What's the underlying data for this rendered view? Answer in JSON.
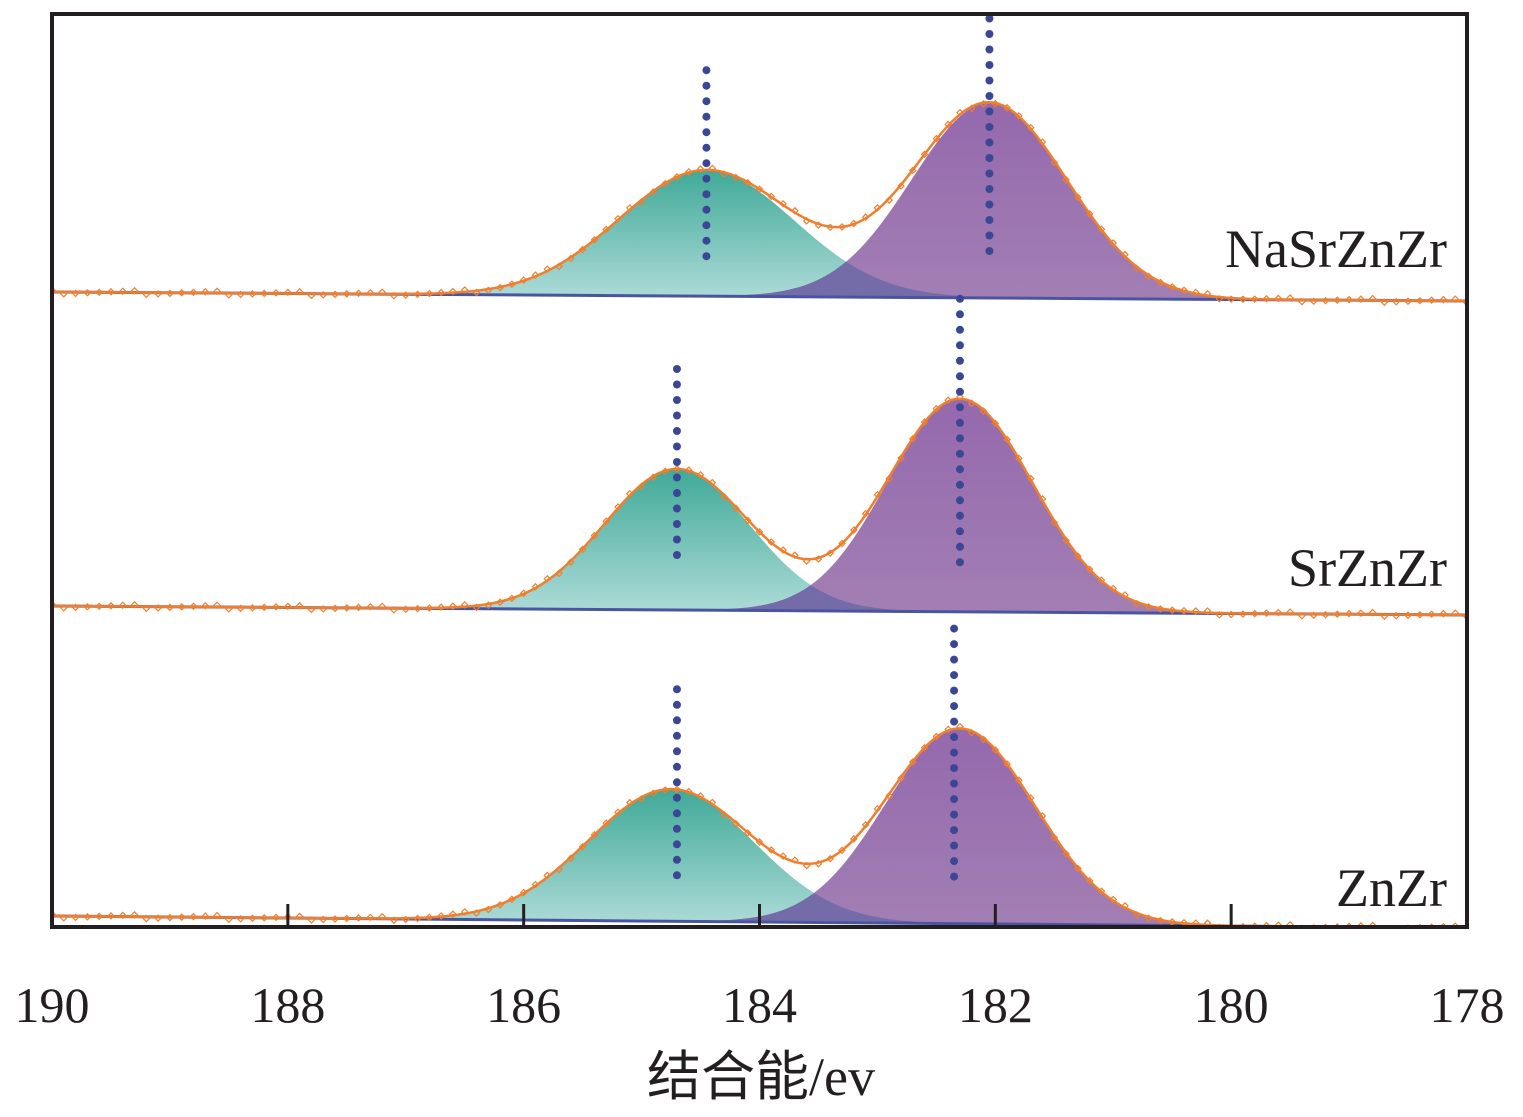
{
  "chart_data": {
    "type": "area",
    "xlabel": "结合能/ev",
    "ylabel": "",
    "x_reversed": true,
    "xlim": [
      178,
      190
    ],
    "xticks": [
      190,
      188,
      186,
      184,
      182,
      180,
      178
    ],
    "grid": false,
    "colors": {
      "peak_low": "#3fae9b",
      "peak_high": "#8a5fa3",
      "overlap": "#6f6aa8",
      "envelope": "#f07f2d",
      "marker_line": "#3b4795",
      "baseline": "#4a55a2",
      "axis": "#231f20"
    },
    "series": [
      {
        "name": "NaSrZnZr",
        "peaks": [
          {
            "center": 184.45,
            "height": 0.42,
            "fwhm": 1.75
          },
          {
            "center": 182.05,
            "height": 0.65,
            "fwhm": 1.55
          }
        ],
        "marker_positions": [
          184.45,
          182.05
        ],
        "baseline_left": 0.0,
        "baseline_right": -0.03
      },
      {
        "name": "SrZnZr",
        "peaks": [
          {
            "center": 184.7,
            "height": 0.47,
            "fwhm": 1.45
          },
          {
            "center": 182.3,
            "height": 0.71,
            "fwhm": 1.45
          }
        ],
        "marker_positions": [
          184.7,
          182.3
        ],
        "baseline_left": 0.0,
        "baseline_right": -0.03
      },
      {
        "name": "ZnZr",
        "peaks": [
          {
            "center": 184.75,
            "height": 0.44,
            "fwhm": 1.65
          },
          {
            "center": 182.3,
            "height": 0.65,
            "fwhm": 1.5
          }
        ],
        "marker_positions": [
          184.7,
          182.35
        ],
        "baseline_left": 0.0,
        "baseline_right": -0.04
      }
    ]
  }
}
